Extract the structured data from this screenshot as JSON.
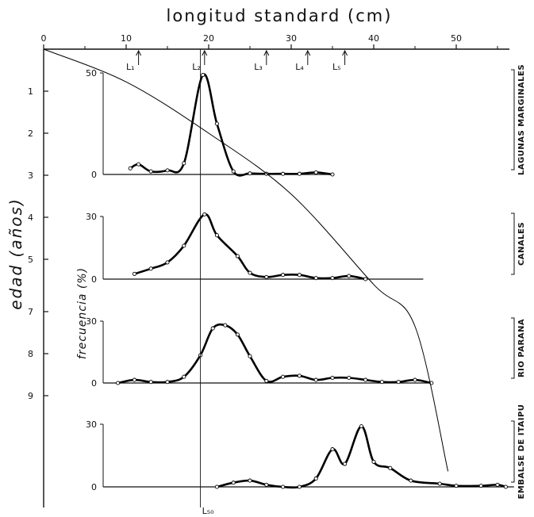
{
  "chart_data": {
    "type": "line",
    "title": "longitud standard (cm)",
    "xlabel": "longitud standard (cm)",
    "x_axis": {
      "min": 0,
      "max": 57,
      "ticks": [
        0,
        10,
        20,
        30,
        40,
        50
      ]
    },
    "age_axis": {
      "label": "edad (años)",
      "ticks": [
        "1",
        "2",
        "3",
        "4",
        "5",
        "7",
        "8",
        "9"
      ],
      "tick_values": [
        1,
        2,
        3,
        4,
        5,
        7,
        8,
        9
      ]
    },
    "freq_label": "frecuencia (%)",
    "growth_curve": [
      {
        "x": 0,
        "y": 0
      },
      {
        "x": 10,
        "y": 0.78
      },
      {
        "x": 20,
        "y": 2.0
      },
      {
        "x": 30,
        "y": 3.45
      },
      {
        "x": 40,
        "y": 5.6
      },
      {
        "x": 45,
        "y": 7.35
      },
      {
        "x": 49,
        "y": 10.8
      }
    ],
    "length_marks": [
      {
        "label": "L₁",
        "x": 11.5
      },
      {
        "label": "L₂",
        "x": 19.5
      },
      {
        "label": "L₃",
        "x": 27
      },
      {
        "label": "L₄",
        "x": 32
      },
      {
        "label": "L₅",
        "x": 36.5
      }
    ],
    "l50": {
      "label": "L₅₀",
      "x": 19
    },
    "panels": [
      {
        "name": "LAGUNAS MARGINALES",
        "ymax": 50,
        "y_ticks": [
          "50",
          "0"
        ],
        "x_end": 35,
        "points": [
          [
            10.5,
            3
          ],
          [
            11.5,
            5
          ],
          [
            13,
            1.5
          ],
          [
            15,
            2
          ],
          [
            17,
            5.5
          ],
          [
            19.3,
            49
          ],
          [
            21,
            25
          ],
          [
            23,
            1.5
          ],
          [
            25,
            0.5
          ],
          [
            27,
            0.3
          ],
          [
            29,
            0.3
          ],
          [
            31,
            0.3
          ],
          [
            33,
            1
          ],
          [
            35,
            0
          ]
        ]
      },
      {
        "name": "CANALES",
        "ymax": 30,
        "y_ticks": [
          "30",
          "0"
        ],
        "x_end": 46,
        "points": [
          [
            11,
            2.5
          ],
          [
            13,
            5
          ],
          [
            15,
            8
          ],
          [
            17,
            16
          ],
          [
            19.5,
            31
          ],
          [
            21,
            21
          ],
          [
            23.5,
            11
          ],
          [
            25,
            3
          ],
          [
            27,
            1
          ],
          [
            29,
            2
          ],
          [
            31,
            2
          ],
          [
            33,
            0.5
          ],
          [
            35,
            0.5
          ],
          [
            37,
            1.5
          ],
          [
            39,
            0
          ]
        ]
      },
      {
        "name": "RIO PARANA",
        "ymax": 30,
        "y_ticks": [
          "30",
          "0"
        ],
        "x_end": 47,
        "points": [
          [
            9,
            0
          ],
          [
            11,
            1.5
          ],
          [
            13,
            0.5
          ],
          [
            15,
            0.5
          ],
          [
            17,
            3
          ],
          [
            19,
            13.5
          ],
          [
            20.5,
            26.5
          ],
          [
            22,
            28
          ],
          [
            23.5,
            23.5
          ],
          [
            25,
            13
          ],
          [
            27,
            1
          ],
          [
            29,
            3
          ],
          [
            31,
            3.5
          ],
          [
            33,
            1.5
          ],
          [
            35,
            2.5
          ],
          [
            37,
            2.5
          ],
          [
            39,
            1.5
          ],
          [
            41,
            0.5
          ],
          [
            43,
            0.5
          ],
          [
            45,
            1.5
          ],
          [
            47,
            0
          ]
        ]
      },
      {
        "name": "EMBALSE DE ITAIPU",
        "ymax": 30,
        "y_ticks": [
          "30",
          "0"
        ],
        "x_end": 57,
        "points": [
          [
            21,
            0
          ],
          [
            23,
            2
          ],
          [
            25,
            3
          ],
          [
            27,
            1
          ],
          [
            29,
            0
          ],
          [
            31,
            0
          ],
          [
            33,
            4
          ],
          [
            35,
            18
          ],
          [
            36.5,
            11
          ],
          [
            38.5,
            29
          ],
          [
            40,
            12
          ],
          [
            42,
            9
          ],
          [
            44.5,
            3
          ],
          [
            48,
            1.5
          ],
          [
            50,
            0.5
          ],
          [
            53,
            0.5
          ],
          [
            55,
            1
          ],
          [
            56,
            0
          ]
        ]
      }
    ]
  }
}
